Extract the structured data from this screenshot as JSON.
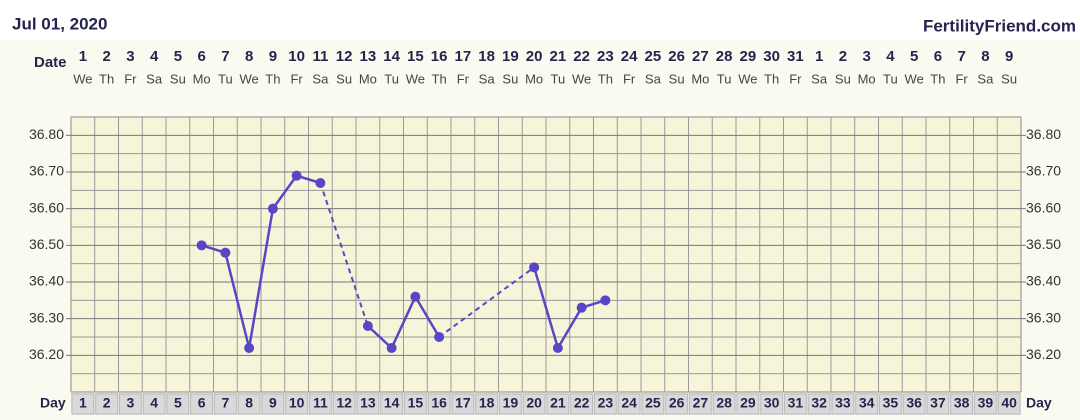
{
  "chart_data": {
    "type": "line",
    "title": "Jul 01, 2020",
    "source": "FertilityFriend.com",
    "date_label": "Date",
    "day_label": "Day",
    "categories": [
      "1",
      "2",
      "3",
      "4",
      "5",
      "6",
      "7",
      "8",
      "9",
      "10",
      "11",
      "12",
      "13",
      "14",
      "15",
      "16",
      "17",
      "18",
      "19",
      "20",
      "21",
      "22",
      "23",
      "24",
      "25",
      "26",
      "27",
      "28",
      "29",
      "30",
      "31",
      "1",
      "2",
      "3",
      "4",
      "5",
      "6",
      "7",
      "8",
      "9"
    ],
    "weekdays": [
      "We",
      "Th",
      "Fr",
      "Sa",
      "Su",
      "Mo",
      "Tu",
      "We",
      "Th",
      "Fr",
      "Sa",
      "Su",
      "Mo",
      "Tu",
      "We",
      "Th",
      "Fr",
      "Sa",
      "Su",
      "Mo",
      "Tu",
      "We",
      "Th",
      "Fr",
      "Sa",
      "Su",
      "Mo",
      "Tu",
      "We",
      "Th",
      "Fr",
      "Sa",
      "Su",
      "Mo",
      "Tu",
      "We",
      "Th",
      "Fr",
      "Sa",
      "Su"
    ],
    "days": [
      1,
      2,
      3,
      4,
      5,
      6,
      7,
      8,
      9,
      10,
      11,
      12,
      13,
      14,
      15,
      16,
      17,
      18,
      19,
      20,
      21,
      22,
      23,
      24,
      25,
      26,
      27,
      28,
      29,
      30,
      31,
      32,
      33,
      34,
      35,
      36,
      37,
      38,
      39,
      40
    ],
    "series": [
      {
        "color": "#5747c6",
        "values": [
          null,
          null,
          null,
          null,
          null,
          36.5,
          36.48,
          36.22,
          36.6,
          36.69,
          36.67,
          null,
          36.28,
          36.22,
          36.36,
          36.25,
          null,
          null,
          null,
          36.44,
          36.22,
          36.33,
          36.35,
          null,
          null,
          null,
          null,
          null,
          null,
          null,
          null,
          null,
          null,
          null,
          null,
          null,
          null,
          null,
          null,
          null
        ]
      }
    ],
    "ylim": [
      36.1,
      36.85
    ],
    "yticks": [
      {
        "value": 36.2,
        "label": "36.20"
      },
      {
        "value": 36.3,
        "label": "36.30"
      },
      {
        "value": 36.4,
        "label": "36.40"
      },
      {
        "value": 36.5,
        "label": "36.50"
      },
      {
        "value": 36.6,
        "label": "36.60"
      },
      {
        "value": 36.7,
        "label": "36.70"
      },
      {
        "value": 36.8,
        "label": "36.80"
      }
    ],
    "minor_yticks": [
      36.15,
      36.25,
      36.35,
      36.45,
      36.55,
      36.65,
      36.75
    ],
    "grid": true
  }
}
